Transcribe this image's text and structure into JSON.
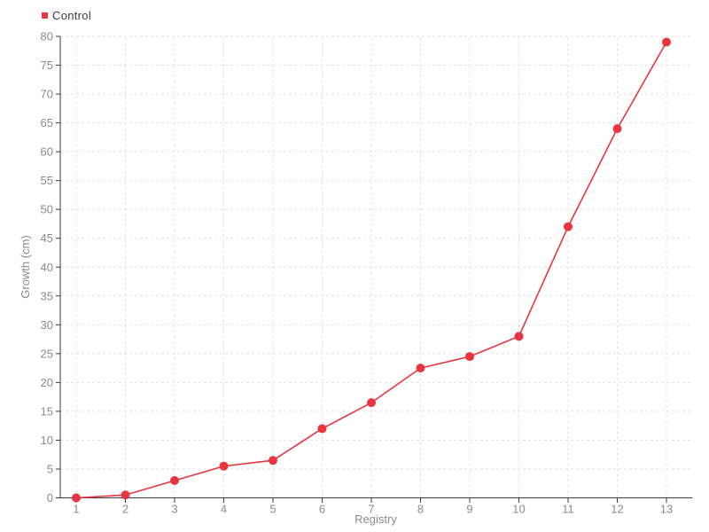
{
  "chart_data": {
    "type": "line",
    "x": [
      1,
      2,
      3,
      4,
      5,
      6,
      7,
      8,
      9,
      10,
      11,
      12,
      13
    ],
    "series": [
      {
        "name": "Control",
        "values": [
          0,
          0.5,
          3,
          5.5,
          6.5,
          12,
          16.5,
          22.5,
          24.5,
          28,
          47,
          64,
          79
        ]
      }
    ],
    "xlabel": "Registry",
    "ylabel": "Growth (cm)",
    "ylim": [
      0,
      80
    ],
    "y_tick_step": 5,
    "grid": true,
    "grid_style": "dashed",
    "legend_position": "top-left",
    "marker": "circle"
  },
  "colors": {
    "series": "#e8353f",
    "grid": "#e2e2e2",
    "axis": "#3a3a3a",
    "tick_label": "#8a8a8a",
    "axis_title": "#8a8a8a",
    "legend_text": "#3c3c3c",
    "background": "#ffffff"
  }
}
